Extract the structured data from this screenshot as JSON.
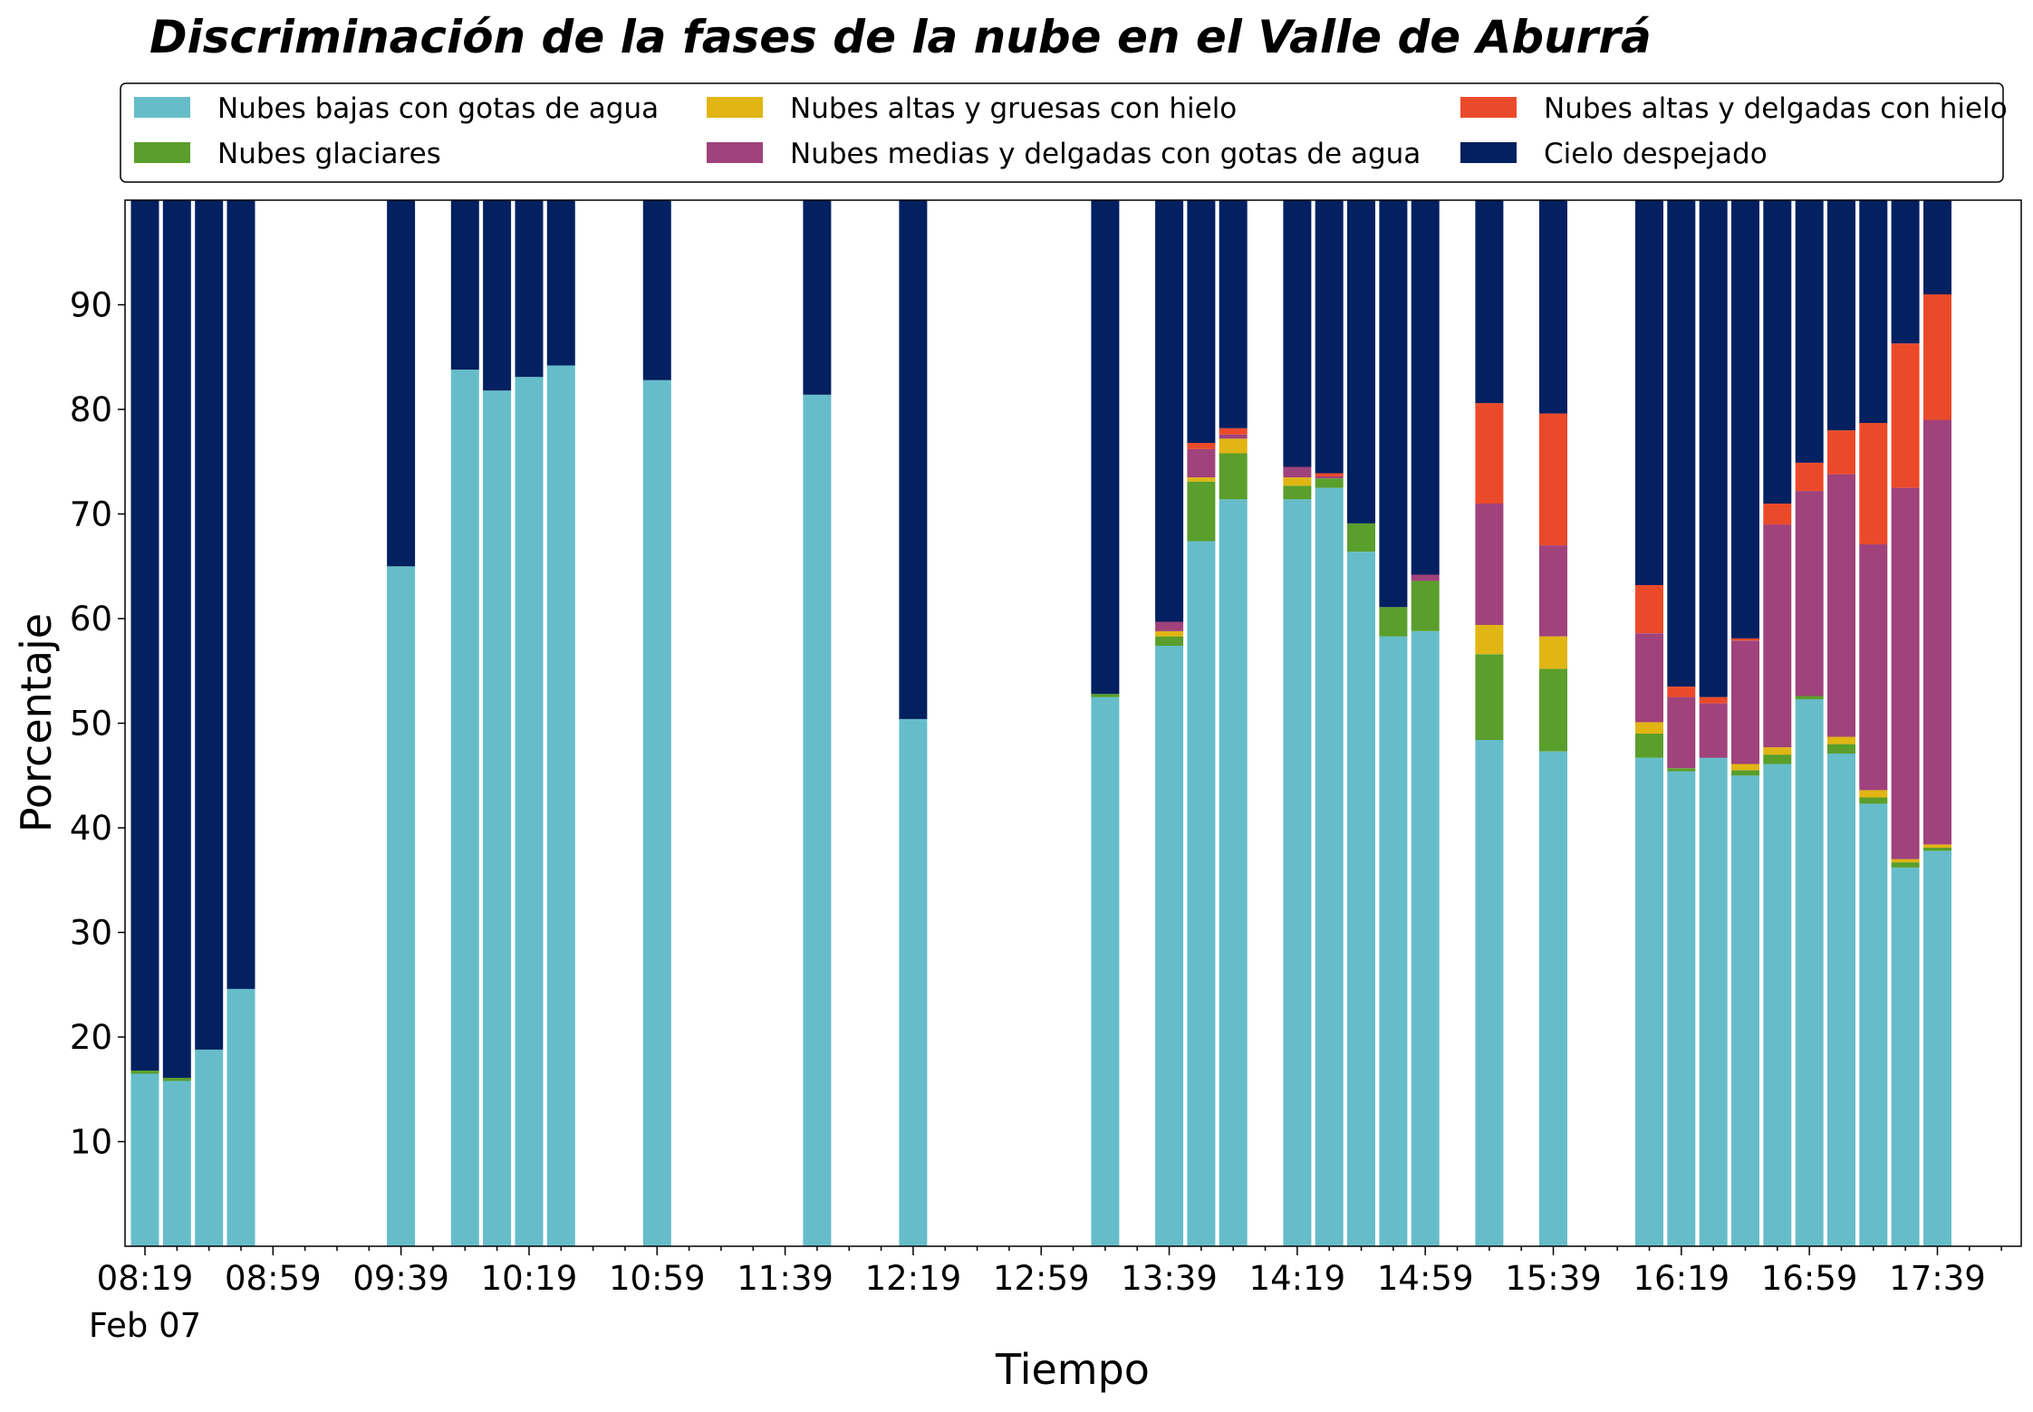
{
  "chart_data": {
    "type": "bar",
    "stacked": true,
    "title": "Discriminación de la fases de la nube en el Valle de Aburrá",
    "xlabel": "Tiempo",
    "ylabel": "Porcentaje",
    "ylim": [
      0,
      100
    ],
    "yticks": [
      10,
      20,
      30,
      40,
      50,
      60,
      70,
      80,
      90
    ],
    "x_tick_labels": [
      "08:19",
      "08:59",
      "09:39",
      "10:19",
      "10:59",
      "11:39",
      "12:19",
      "12:59",
      "13:39",
      "14:19",
      "14:59",
      "15:39",
      "16:19",
      "16:59",
      "17:39"
    ],
    "x_date_label": "Feb 07",
    "grid": false,
    "legend_position": "top",
    "slots": [
      0,
      1,
      2,
      3,
      8,
      10,
      11,
      12,
      13,
      16,
      21,
      24,
      30,
      32,
      33,
      34,
      36,
      37,
      38,
      39,
      40,
      42,
      44,
      47,
      48,
      49,
      50,
      51,
      52,
      53,
      54,
      55,
      56
    ],
    "series": [
      {
        "name": "Nubes bajas con gotas de agua",
        "color": "#66BDC9",
        "values": [
          16.5,
          15.8,
          18.8,
          24.6,
          65.0,
          83.8,
          81.8,
          83.1,
          84.2,
          82.8,
          81.4,
          50.4,
          52.5,
          57.4,
          67.4,
          71.4,
          71.4,
          72.5,
          66.4,
          58.3,
          58.8,
          48.4,
          47.3,
          46.7,
          45.4,
          46.7,
          45.0,
          46.1,
          52.3,
          47.1,
          42.3,
          36.2,
          37.8
        ]
      },
      {
        "name": "Nubes glaciares",
        "color": "#5A9E2C",
        "values": [
          0.3,
          0.3,
          0.0,
          0.0,
          0.0,
          0.0,
          0.0,
          0.0,
          0.0,
          0.0,
          0.0,
          0.0,
          0.3,
          0.9,
          5.7,
          4.4,
          1.3,
          0.9,
          2.7,
          2.8,
          4.8,
          8.2,
          7.9,
          2.3,
          0.3,
          0.0,
          0.5,
          0.9,
          0.3,
          0.9,
          0.6,
          0.5,
          0.3
        ]
      },
      {
        "name": "Nubes altas y gruesas con hielo",
        "color": "#E1B513",
        "values": [
          0.0,
          0.0,
          0.0,
          0.0,
          0.0,
          0.0,
          0.0,
          0.0,
          0.0,
          0.0,
          0.0,
          0.0,
          0.0,
          0.5,
          0.4,
          1.4,
          0.8,
          0.0,
          0.0,
          0.0,
          0.0,
          2.8,
          3.1,
          1.1,
          0.0,
          0.0,
          0.6,
          0.7,
          0.0,
          0.7,
          0.7,
          0.3,
          0.3
        ]
      },
      {
        "name": "Nubes medias y delgadas con gotas de agua",
        "color": "#A0427C",
        "values": [
          0.0,
          0.0,
          0.0,
          0.0,
          0.0,
          0.0,
          0.0,
          0.0,
          0.0,
          0.0,
          0.0,
          0.0,
          0.0,
          0.9,
          2.7,
          0.4,
          1.0,
          0.2,
          0.0,
          0.0,
          0.6,
          11.6,
          8.7,
          8.5,
          6.8,
          5.2,
          11.8,
          21.3,
          19.6,
          25.1,
          23.5,
          35.5,
          40.6
        ]
      },
      {
        "name": "Nubes altas y delgadas con hielo",
        "color": "#EB4A2A",
        "values": [
          0.0,
          0.0,
          0.0,
          0.0,
          0.0,
          0.0,
          0.0,
          0.0,
          0.0,
          0.0,
          0.0,
          0.0,
          0.0,
          0.0,
          0.6,
          0.6,
          0.0,
          0.3,
          0.0,
          0.0,
          0.0,
          9.6,
          12.6,
          4.6,
          1.0,
          0.6,
          0.2,
          2.0,
          2.7,
          4.2,
          11.6,
          13.8,
          12.0
        ]
      },
      {
        "name": "Cielo despejado",
        "color": "#032060",
        "values": [
          83.2,
          83.9,
          81.2,
          75.4,
          35.0,
          16.2,
          18.2,
          16.9,
          15.8,
          17.2,
          18.6,
          49.6,
          47.2,
          40.3,
          23.2,
          21.8,
          25.5,
          26.1,
          30.9,
          38.9,
          35.8,
          19.4,
          20.4,
          36.8,
          46.5,
          47.5,
          41.9,
          29.0,
          25.1,
          22.0,
          21.3,
          13.7,
          9.0
        ]
      }
    ]
  }
}
